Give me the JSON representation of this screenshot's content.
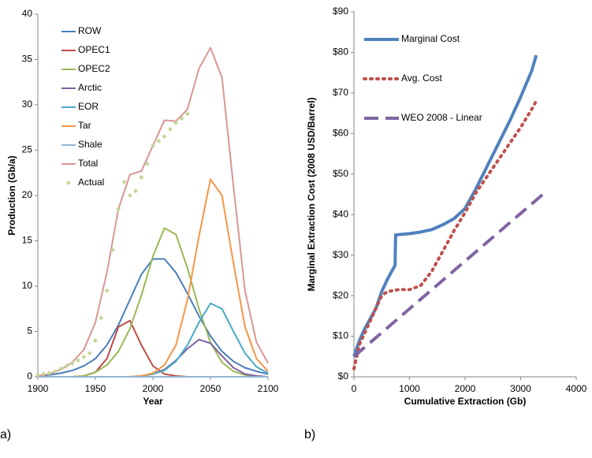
{
  "chart_data": [
    {
      "type": "line",
      "label": "a)",
      "xlabel": "Year",
      "ylabel": "Production (Gb/a)",
      "xlim": [
        1900,
        2100
      ],
      "xticks": [
        1900,
        1950,
        2000,
        2050,
        2100
      ],
      "ylim": [
        0,
        40
      ],
      "yticks": [
        0,
        5,
        10,
        15,
        20,
        25,
        30,
        35,
        40
      ],
      "x": [
        1900,
        1910,
        1920,
        1930,
        1940,
        1950,
        1960,
        1970,
        1980,
        1990,
        2000,
        2010,
        2020,
        2030,
        2040,
        2050,
        2060,
        2070,
        2080,
        2090,
        2100
      ],
      "series": [
        {
          "name": "ROW",
          "color": "#4a7ebb",
          "values": [
            0.1,
            0.2,
            0.4,
            0.7,
            1.2,
            2,
            3.5,
            5.7,
            8.5,
            11.3,
            13,
            13,
            11.5,
            9.2,
            6.7,
            4.5,
            2.8,
            1.7,
            1,
            0.6,
            0.3
          ]
        },
        {
          "name": "OPEC1",
          "color": "#be4b48",
          "values": [
            0,
            0,
            0,
            0,
            0.1,
            0.5,
            2,
            5.5,
            6.2,
            3.5,
            1.2,
            0.3,
            0.1,
            0,
            0,
            0,
            0,
            0,
            0,
            0,
            0
          ]
        },
        {
          "name": "OPEC2",
          "color": "#98b954",
          "values": [
            0,
            0,
            0,
            0,
            0.1,
            0.5,
            1.3,
            2.8,
            5.3,
            9,
            13.3,
            16.4,
            15.7,
            12,
            7.5,
            3.8,
            1.6,
            0.6,
            0.2,
            0.1,
            0
          ]
        },
        {
          "name": "Arctic",
          "color": "#7d60a0",
          "values": [
            0,
            0,
            0,
            0,
            0,
            0,
            0,
            0,
            0,
            0.1,
            0.3,
            0.8,
            1.8,
            3.1,
            4.1,
            3.7,
            2.3,
            1,
            0.3,
            0.1,
            0
          ]
        },
        {
          "name": "EOR",
          "color": "#46aac5",
          "values": [
            0,
            0,
            0,
            0,
            0,
            0,
            0,
            0,
            0,
            0.1,
            0.3,
            0.7,
            1.7,
            3.5,
            6,
            8.1,
            7.5,
            5,
            2.6,
            1.1,
            0.4
          ]
        },
        {
          "name": "Tar",
          "color": "#f79646",
          "values": [
            0,
            0,
            0,
            0,
            0,
            0,
            0,
            0,
            0,
            0.1,
            0.4,
            1.3,
            3.5,
            8.5,
            15.5,
            21.8,
            20,
            12.5,
            5.5,
            2,
            0.6
          ]
        },
        {
          "name": "Shale",
          "color": "#95b3d7",
          "values": [
            0,
            0,
            0,
            0,
            0,
            0,
            0,
            0,
            0,
            0,
            0,
            0,
            0,
            0,
            0,
            0,
            0,
            0,
            0,
            0,
            0
          ]
        },
        {
          "name": "Total",
          "color": "#d99694",
          "values": [
            0.1,
            0.3,
            0.8,
            1.6,
            3,
            6,
            11.5,
            18.5,
            22.3,
            22.7,
            25.5,
            28.3,
            28.2,
            29.5,
            34,
            36.3,
            33,
            21,
            9.5,
            3.8,
            1.5
          ]
        },
        {
          "name": "Actual",
          "color": "#c3d69b",
          "type": "scatter",
          "x": [
            1900,
            1905,
            1910,
            1915,
            1920,
            1925,
            1930,
            1935,
            1940,
            1945,
            1950,
            1955,
            1960,
            1965,
            1970,
            1975,
            1980,
            1985,
            1990,
            1995,
            2000,
            2005,
            2010,
            2015,
            2020,
            2025,
            2030
          ],
          "values": [
            0.2,
            0.3,
            0.4,
            0.6,
            0.9,
            1.2,
            1.5,
            1.8,
            2.2,
            2.6,
            4,
            6.5,
            9.5,
            14,
            18.5,
            21.5,
            20,
            20.5,
            22,
            23.5,
            25.5,
            26,
            26.5,
            27.3,
            28,
            28.5,
            29
          ]
        }
      ]
    },
    {
      "type": "line",
      "label": "b)",
      "xlabel": "Cumulative Extraction (Gb)",
      "ylabel": "Marginal Extraction Cost (2008 USD/Barrel)",
      "xlim": [
        0,
        4000
      ],
      "xticks": [
        0,
        1000,
        2000,
        3000,
        4000
      ],
      "ylim": [
        0,
        90
      ],
      "yticks": [
        {
          "value": 0,
          "label": "$0"
        },
        {
          "value": 10,
          "label": "$10"
        },
        {
          "value": 20,
          "label": "$20"
        },
        {
          "value": 30,
          "label": "$30"
        },
        {
          "value": 40,
          "label": "$40"
        },
        {
          "value": 50,
          "label": "$50"
        },
        {
          "value": 60,
          "label": "$60"
        },
        {
          "value": 70,
          "label": "$70"
        },
        {
          "value": 80,
          "label": "$80"
        },
        {
          "value": 90,
          "label": "$90"
        }
      ],
      "series": [
        {
          "name": "Marginal Cost",
          "color": "#4f81bd",
          "style": "solid",
          "x": [
            0,
            100,
            200,
            300,
            400,
            500,
            600,
            700,
            740,
            750,
            1000,
            1200,
            1400,
            1600,
            1800,
            2000,
            2200,
            2400,
            2600,
            2800,
            3000,
            3200,
            3280
          ],
          "values": [
            5,
            9,
            12,
            14.5,
            17,
            21,
            24,
            26.5,
            27.5,
            35,
            35.3,
            35.7,
            36.3,
            37.5,
            39,
            41.5,
            46.5,
            52,
            57.5,
            63,
            69,
            75.5,
            79.3
          ]
        },
        {
          "name": "Avg.  Cost",
          "color": "#c0504d",
          "style": "dotted",
          "x": [
            0,
            100,
            200,
            300,
            400,
            500,
            600,
            800,
            1000,
            1200,
            1400,
            1600,
            1800,
            2000,
            2200,
            2400,
            2600,
            2800,
            3000,
            3200,
            3280
          ],
          "values": [
            2,
            8,
            11,
            14,
            17,
            20,
            21,
            21.5,
            21.5,
            22.5,
            26,
            31,
            36,
            40.5,
            45.5,
            49.5,
            53.5,
            57.5,
            61.5,
            66,
            68
          ]
        },
        {
          "name": "WEO 2008 - Linear",
          "color": "#8064a2",
          "style": "dashed",
          "x": [
            0,
            3400
          ],
          "values": [
            5,
            45
          ]
        }
      ]
    }
  ]
}
